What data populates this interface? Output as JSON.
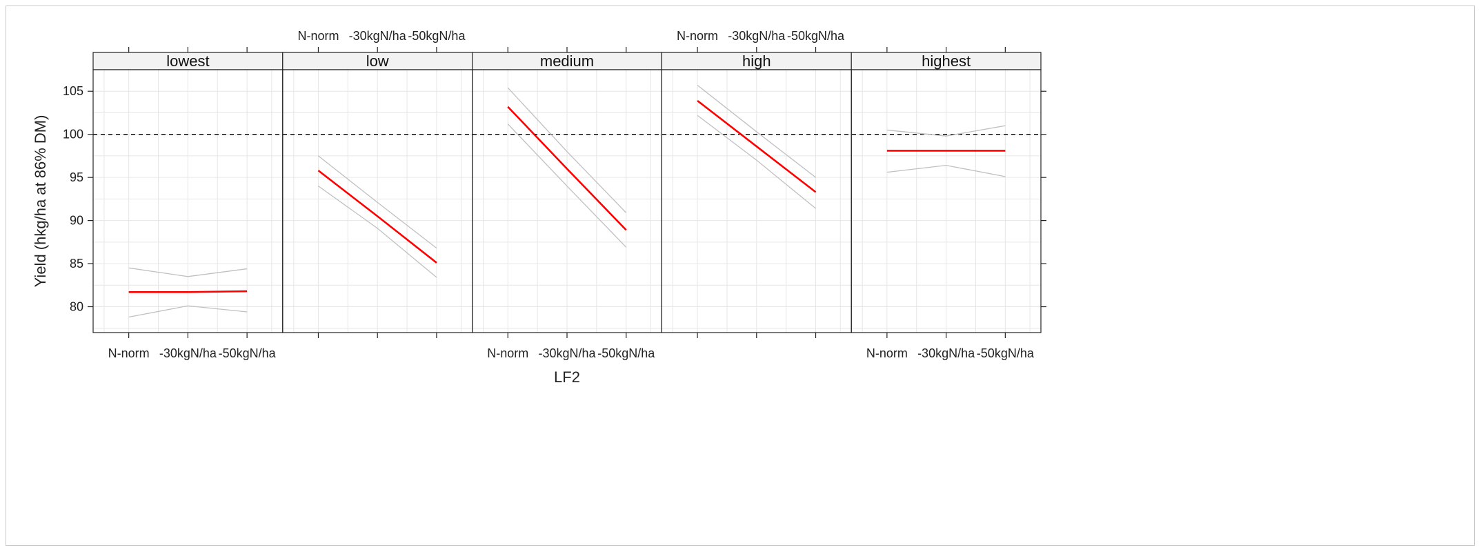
{
  "chart_data": {
    "type": "line",
    "xlabel": "LF2",
    "ylabel": "Yield (hkg/ha at 86% DM)",
    "categories": [
      "N-norm",
      "-30kgN/ha",
      "-50kgN/ha"
    ],
    "ylim": [
      77,
      107.5
    ],
    "yticks": [
      80,
      85,
      90,
      95,
      100,
      105
    ],
    "reference_line": 100,
    "grid": true,
    "colors": {
      "fit": "#ff0000",
      "band": "#c0c0c0",
      "strip": "#f2f2f2",
      "reference": "#000000"
    },
    "panels": [
      {
        "name": "lowest",
        "fit": [
          81.7,
          81.7,
          81.8
        ],
        "lower": [
          78.8,
          80.1,
          79.4
        ],
        "upper": [
          84.5,
          83.5,
          84.4
        ]
      },
      {
        "name": "low",
        "fit": [
          95.8,
          90.5,
          85.1
        ],
        "lower": [
          94.0,
          89.1,
          83.4
        ],
        "upper": [
          97.5,
          92.1,
          86.8
        ]
      },
      {
        "name": "medium",
        "fit": [
          103.2,
          96.0,
          88.9
        ],
        "lower": [
          101.2,
          94.0,
          86.9
        ],
        "upper": [
          105.4,
          98.0,
          90.9
        ]
      },
      {
        "name": "high",
        "fit": [
          103.9,
          98.6,
          93.3
        ],
        "lower": [
          102.2,
          97.0,
          91.4
        ],
        "upper": [
          105.7,
          100.3,
          95.0
        ]
      },
      {
        "name": "highest",
        "fit": [
          98.1,
          98.1,
          98.1
        ],
        "lower": [
          95.6,
          96.4,
          95.1
        ],
        "upper": [
          100.5,
          99.8,
          101.0
        ]
      }
    ]
  }
}
